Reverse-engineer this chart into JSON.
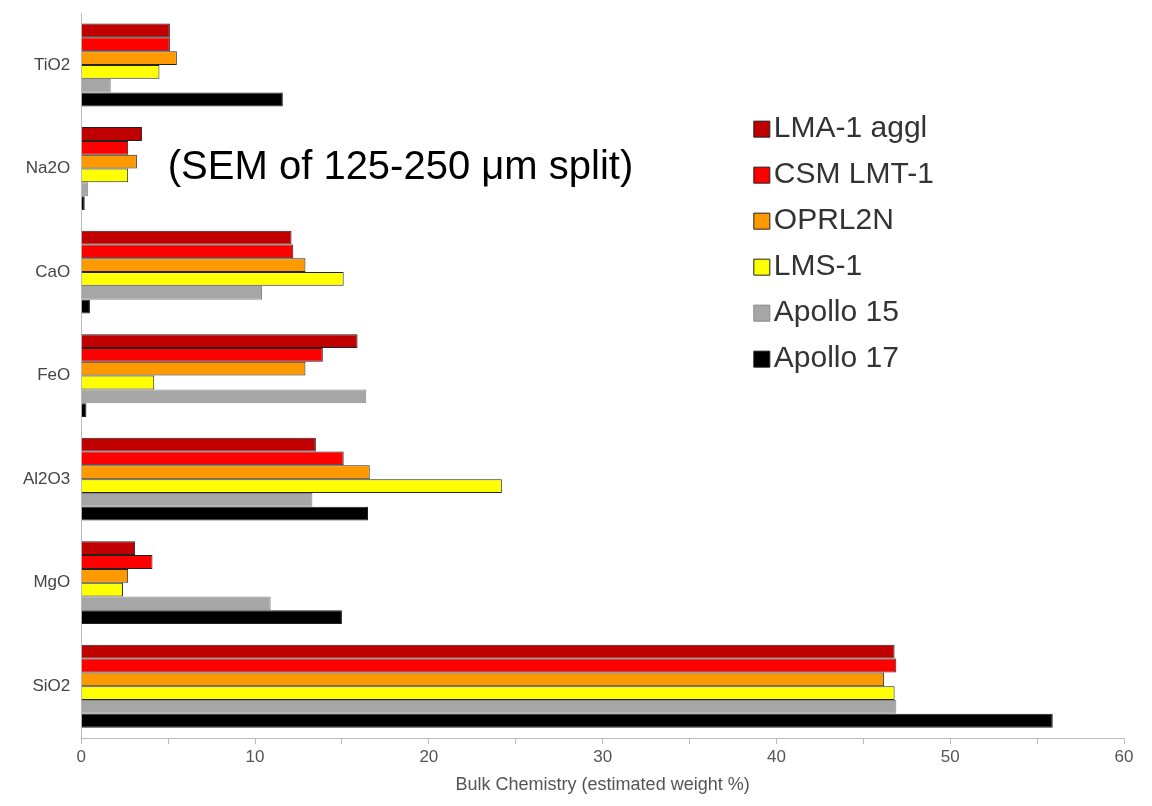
{
  "chart_data": {
    "type": "bar",
    "orientation": "horizontal",
    "xlabel": "Bulk Chemistry (estimated weight %)",
    "categories": [
      "TiO2",
      "Na2O",
      "CaO",
      "FeO",
      "Al2O3",
      "MgO",
      "SiO2"
    ],
    "series": [
      {
        "name": "LMA-1 aggl",
        "color": "#c00000",
        "values": [
          5.1,
          3.5,
          12.1,
          15.9,
          13.5,
          3.1,
          46.8
        ]
      },
      {
        "name": "CSM LMT-1",
        "color": "#ff0000",
        "values": [
          5.1,
          2.7,
          12.2,
          13.9,
          15.1,
          4.1,
          46.9
        ]
      },
      {
        "name": "OPRL2N",
        "color": "#ff9900",
        "values": [
          5.5,
          3.2,
          12.9,
          12.9,
          16.6,
          2.7,
          46.2
        ]
      },
      {
        "name": "LMS-1",
        "color": "#ffff00",
        "values": [
          4.5,
          2.7,
          15.1,
          4.2,
          24.2,
          2.4,
          46.8
        ]
      },
      {
        "name": "Apollo 15",
        "color": "#a6a6a6",
        "values": [
          1.7,
          0.4,
          10.4,
          16.4,
          13.3,
          10.9,
          46.9
        ]
      },
      {
        "name": "Apollo 17",
        "color": "#000000",
        "values": [
          11.6,
          0.2,
          0.5,
          0.3,
          16.5,
          15.0,
          55.9
        ]
      }
    ],
    "xlim": [
      0,
      60
    ],
    "xticks": [
      0,
      {
        "value": 5,
        "label": null
      },
      10,
      {
        "value": 15,
        "label": null
      },
      20,
      {
        "value": 25,
        "label": null
      },
      30,
      {
        "value": 35,
        "label": null
      },
      40,
      {
        "value": 45,
        "label": null
      },
      50,
      {
        "value": 55,
        "label": null
      },
      60
    ],
    "annotations": [
      "(SEM of 125-250 μm split)"
    ],
    "legend": "right",
    "grid": false
  }
}
